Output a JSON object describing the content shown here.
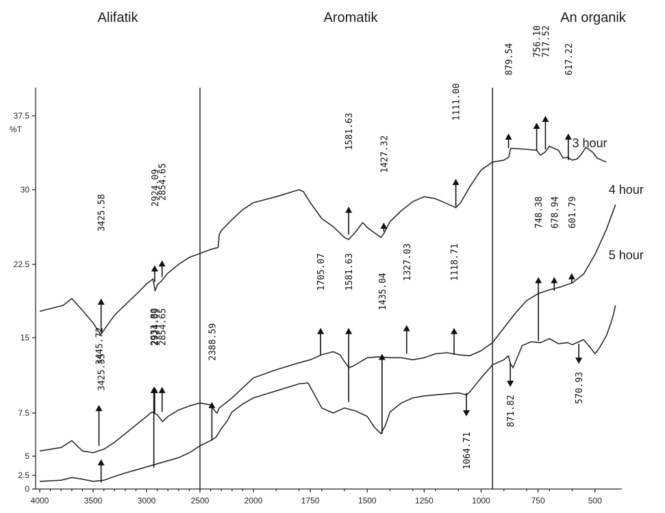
{
  "chart_data": {
    "type": "line",
    "title": "",
    "xlabel": "",
    "ylabel": "%T",
    "xlim": [
      4000,
      400
    ],
    "ylim": [
      0,
      40
    ],
    "x_ticks": [
      "4000",
      "3500",
      "3000",
      "2500",
      "2000",
      "1750",
      "1500",
      "1250",
      "1000",
      "750",
      "500"
    ],
    "y_ticks": [
      "0",
      "2.5",
      "5",
      "7.5",
      "15",
      "22.5",
      "30",
      "37.5"
    ],
    "regions": [
      {
        "label": "Alifatik"
      },
      {
        "label": "Aromatik"
      },
      {
        "label": "An organik"
      }
    ],
    "dividers": [
      2500,
      950
    ],
    "series": [
      {
        "name": "3 hour",
        "label_at": [
          600,
          34.3
        ],
        "x": [
          4000,
          3780,
          3700,
          3600,
          3500,
          3430,
          3300,
          3100,
          2990,
          2940,
          2920,
          2900,
          2860,
          2800,
          2700,
          2600,
          2500,
          2400,
          2330,
          2320,
          2300,
          2200,
          2100,
          2000,
          1900,
          1800,
          1780,
          1750,
          1700,
          1650,
          1600,
          1581,
          1550,
          1520,
          1500,
          1470,
          1440,
          1427,
          1400,
          1350,
          1300,
          1250,
          1200,
          1150,
          1111,
          1090,
          1050,
          1000,
          950,
          900,
          879,
          870,
          800,
          756,
          740,
          720,
          700,
          660,
          640,
          620,
          600,
          580,
          560,
          540,
          510,
          490,
          470,
          450
        ],
        "y": [
          17.7,
          18.3,
          19.0,
          17.8,
          16.5,
          15.3,
          17.3,
          19.4,
          20.6,
          21.0,
          19.8,
          20.4,
          20.8,
          21.6,
          22.5,
          23.2,
          23.6,
          24.0,
          24.2,
          25.5,
          25.9,
          27.0,
          28.0,
          28.7,
          29.3,
          30.0,
          29.8,
          28.7,
          27.1,
          26.3,
          25.2,
          25.0,
          25.8,
          26.7,
          26.2,
          25.7,
          25.2,
          25.6,
          26.8,
          27.9,
          28.8,
          29.3,
          29.1,
          28.6,
          28.2,
          28.7,
          30.3,
          32.0,
          32.8,
          33.0,
          33.3,
          34.2,
          34.1,
          34.0,
          33.5,
          33.8,
          34.4,
          34.0,
          33.2,
          33.3,
          33.0,
          33.1,
          33.6,
          34.3,
          33.8,
          33.2,
          33.0,
          32.8
        ]
      },
      {
        "name": "4 hour",
        "label_at": [
          440,
          29.6
        ],
        "x": [
          4000,
          3800,
          3700,
          3600,
          3500,
          3400,
          3300,
          3200,
          3100,
          3000,
          2950,
          2900,
          2850,
          2800,
          2700,
          2600,
          2500,
          2400,
          2360,
          2340,
          2320,
          2200,
          2100,
          2000,
          1900,
          1800,
          1750,
          1700,
          1650,
          1620,
          1600,
          1580,
          1560,
          1500,
          1450,
          1400,
          1350,
          1300,
          1250,
          1200,
          1150,
          1100,
          1050,
          1000,
          950,
          900,
          850,
          800,
          750,
          700,
          650,
          600,
          550,
          500,
          450,
          410
        ],
        "y": [
          5.3,
          5.5,
          5.9,
          5.3,
          5.2,
          5.4,
          5.8,
          6.3,
          6.8,
          7.3,
          7.6,
          7.4,
          7.0,
          7.3,
          7.8,
          8.2,
          8.5,
          8.3,
          7.7,
          7.5,
          8.0,
          9.0,
          10.0,
          11.0,
          11.8,
          12.5,
          12.8,
          13.3,
          13.6,
          13.3,
          12.6,
          12.0,
          12.2,
          13.0,
          13.1,
          13.0,
          13.0,
          12.8,
          13.0,
          13.4,
          13.5,
          13.3,
          13.2,
          13.7,
          14.5,
          16.0,
          17.5,
          18.8,
          19.5,
          19.9,
          20.2,
          20.6,
          21.5,
          23.5,
          26.0,
          28.5
        ]
      },
      {
        "name": "5 hour",
        "label_at": [
          440,
          23.0
        ],
        "x": [
          4000,
          3800,
          3700,
          3600,
          3500,
          3400,
          3300,
          3200,
          3100,
          3000,
          2900,
          2800,
          2700,
          2600,
          2500,
          2400,
          2350,
          2300,
          2250,
          2200,
          2100,
          2000,
          1900,
          1800,
          1760,
          1700,
          1650,
          1600,
          1550,
          1500,
          1470,
          1440,
          1420,
          1400,
          1350,
          1300,
          1250,
          1200,
          1150,
          1100,
          1080,
          1064,
          1050,
          1000,
          950,
          900,
          880,
          871,
          860,
          820,
          780,
          740,
          700,
          660,
          620,
          600,
          570,
          550,
          520,
          500,
          480,
          450,
          430,
          420,
          410
        ],
        "y": [
          1.4,
          1.6,
          2.1,
          1.8,
          1.4,
          1.6,
          2.3,
          2.8,
          3.2,
          3.6,
          4.0,
          4.4,
          4.8,
          5.2,
          5.6,
          5.9,
          6.1,
          6.6,
          7.0,
          7.6,
          8.4,
          9.0,
          9.7,
          10.4,
          10.5,
          8.0,
          7.5,
          8.0,
          7.7,
          7.3,
          6.7,
          6.3,
          6.8,
          7.6,
          8.5,
          9.0,
          9.2,
          9.3,
          9.4,
          9.5,
          9.4,
          9.3,
          9.6,
          11.0,
          12.3,
          12.8,
          13.2,
          12.4,
          12.0,
          14.2,
          14.6,
          14.5,
          14.9,
          14.4,
          14.5,
          14.3,
          14.6,
          14.8,
          14.0,
          13.4,
          14.0,
          15.2,
          16.5,
          17.3,
          18.3
        ]
      }
    ],
    "annotations": [
      {
        "label": "3425.58",
        "x": 3425.58,
        "tail": 15.5,
        "head": 19.0,
        "label_y": 25.8,
        "dir": "up"
      },
      {
        "label": "2924.09",
        "x": 2924.09,
        "tail": 20.7,
        "head": 22.4,
        "label_y": 28.3,
        "dir": "up"
      },
      {
        "label": "2854.65",
        "x": 2854.65,
        "tail": 21.2,
        "head": 22.9,
        "label_y": 28.9,
        "dir": "up"
      },
      {
        "label": "1581.63",
        "x": 1581.63,
        "tail": 25.5,
        "head": 28.3,
        "label_y": 34.0,
        "dir": "up"
      },
      {
        "label": "1427.32",
        "x": 1427.32,
        "tail": 25.8,
        "head": 26.7,
        "label_y": 31.7,
        "dir": "up"
      },
      {
        "label": "1111.00",
        "x": 1111.0,
        "tail": 28.3,
        "head": 31.1,
        "label_y": 37.0,
        "dir": "up"
      },
      {
        "label": "879.54",
        "x": 879.54,
        "tail": 34.2,
        "head": 35.7,
        "label_y": 41.6,
        "dir": "up"
      },
      {
        "label": "756.10",
        "x": 756.1,
        "tail": 34.0,
        "head": 36.8,
        "label_y": 43.4,
        "dir": "up"
      },
      {
        "label": "717.52",
        "x": 717.52,
        "tail": 34.1,
        "head": 37.5,
        "label_y": 43.4,
        "dir": "up"
      },
      {
        "label": "617.22",
        "x": 617.22,
        "tail": 33.0,
        "head": 35.7,
        "label_y": 41.6,
        "dir": "up"
      },
      {
        "label": "3445.72",
        "x": 3445.72,
        "tail": 5.6,
        "head": 8.3,
        "label_y": 12.3,
        "dir": "up"
      },
      {
        "label": "3425.55",
        "x": 3425.55,
        "tail": 1.2,
        "head": 4.6,
        "label_y": 9.7,
        "dir": "up"
      },
      {
        "label": "2931.80",
        "x": 2931.8,
        "tail": 3.5,
        "head": 10.1,
        "label_y": 14.2,
        "dir": "up"
      },
      {
        "label": "2924.09",
        "x": 2924.09,
        "tail": 7.5,
        "head": 10.1,
        "label_y": 14.2,
        "dir": "up"
      },
      {
        "label": "2854.65",
        "x": 2854.65,
        "tail": 7.6,
        "head": 10.1,
        "label_y": 14.2,
        "dir": "up"
      },
      {
        "label": "2388.59",
        "x": 2388.59,
        "tail": 5.9,
        "head": 8.6,
        "label_y": 12.7,
        "dir": "up"
      },
      {
        "label": "1705.07",
        "x": 1705.07,
        "tail": 13.3,
        "head": 16.0,
        "label_y": 19.8,
        "dir": "up"
      },
      {
        "label": "1581.63",
        "x": 1581.63,
        "tail": 8.6,
        "head": 16.0,
        "label_y": 19.8,
        "dir": "up"
      },
      {
        "label": "1435.04",
        "x": 1435.04,
        "tail": 6.3,
        "head": 13.4,
        "label_y": 17.8,
        "dir": "up"
      },
      {
        "label": "1327.03",
        "x": 1327.03,
        "tail": 13.4,
        "head": 16.3,
        "label_y": 20.8,
        "dir": "up"
      },
      {
        "label": "1118.71",
        "x": 1118.71,
        "tail": 13.3,
        "head": 16.0,
        "label_y": 20.8,
        "dir": "up"
      },
      {
        "label": "748.38",
        "x": 748.38,
        "tail": 14.7,
        "head": 21.2,
        "label_y": 26.1,
        "dir": "up"
      },
      {
        "label": "678.94",
        "x": 678.94,
        "tail": 19.8,
        "head": 21.2,
        "label_y": 26.1,
        "dir": "up"
      },
      {
        "label": "601.79",
        "x": 601.79,
        "tail": 20.6,
        "head": 21.6,
        "label_y": 26.1,
        "dir": "up"
      },
      {
        "label": "1064.71",
        "x": 1064.71,
        "tail": 9.5,
        "head": 7.3,
        "label_y": 6.4,
        "dir": "down"
      },
      {
        "label": "871.82",
        "x": 871.82,
        "tail": 12.5,
        "head": 10.1,
        "label_y": 9.3,
        "dir": "down"
      },
      {
        "label": "570.93",
        "x": 570.93,
        "tail": 14.4,
        "head": 12.4,
        "label_y": 11.6,
        "dir": "down"
      }
    ]
  }
}
